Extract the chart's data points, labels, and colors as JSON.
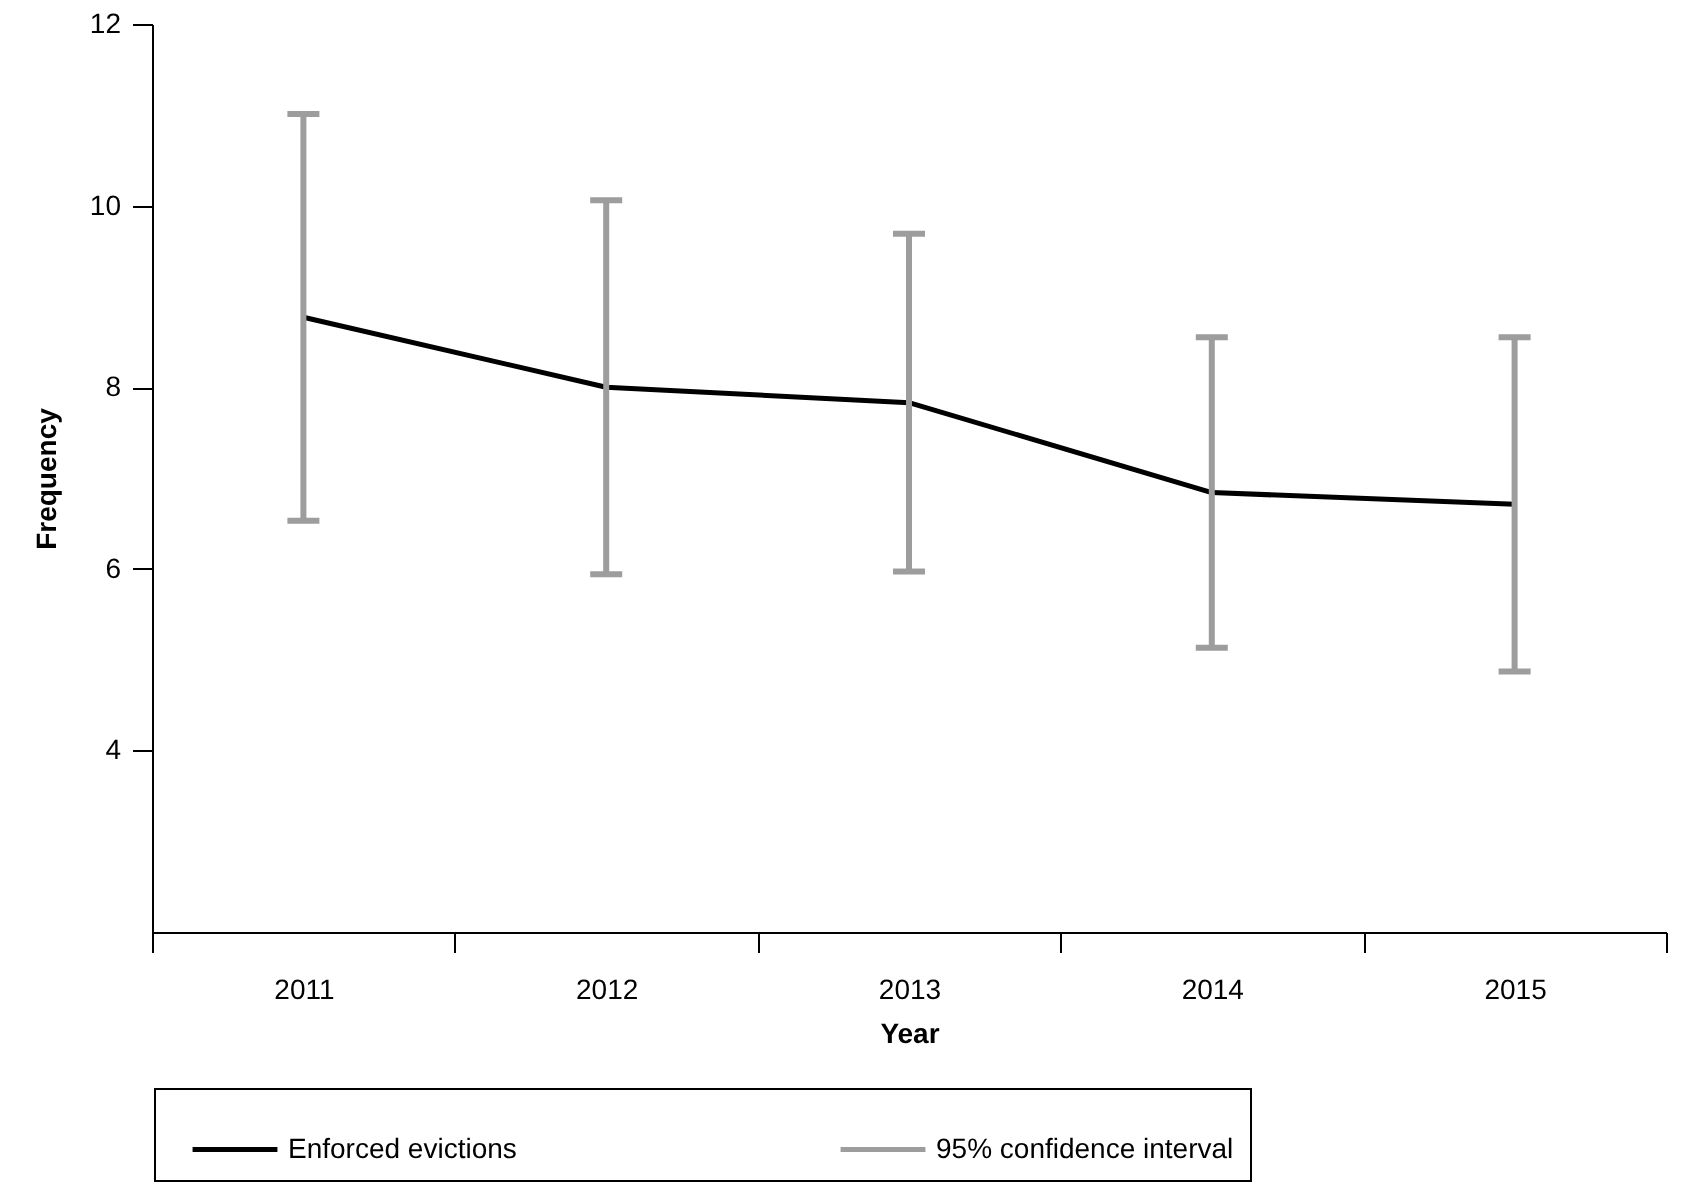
{
  "chart_data": {
    "type": "line",
    "categories": [
      "2011",
      "2012",
      "2013",
      "2014",
      "2015"
    ],
    "series": [
      {
        "name": "Enforced evictions",
        "color": "#000000",
        "values": [
          8.77,
          8.0,
          7.83,
          6.84,
          6.71
        ],
        "errors": [
          2.24,
          2.06,
          1.86,
          1.71,
          1.84
        ]
      }
    ],
    "xlabel": "Year",
    "ylabel": "Frequency",
    "ylim": [
      2,
      12
    ],
    "yticks": [
      4,
      6,
      8,
      10,
      12
    ],
    "grid": false,
    "legend": "bottom",
    "marker": "none",
    "line_style": "solid",
    "annotations": [
      "95% confidence interval"
    ]
  }
}
